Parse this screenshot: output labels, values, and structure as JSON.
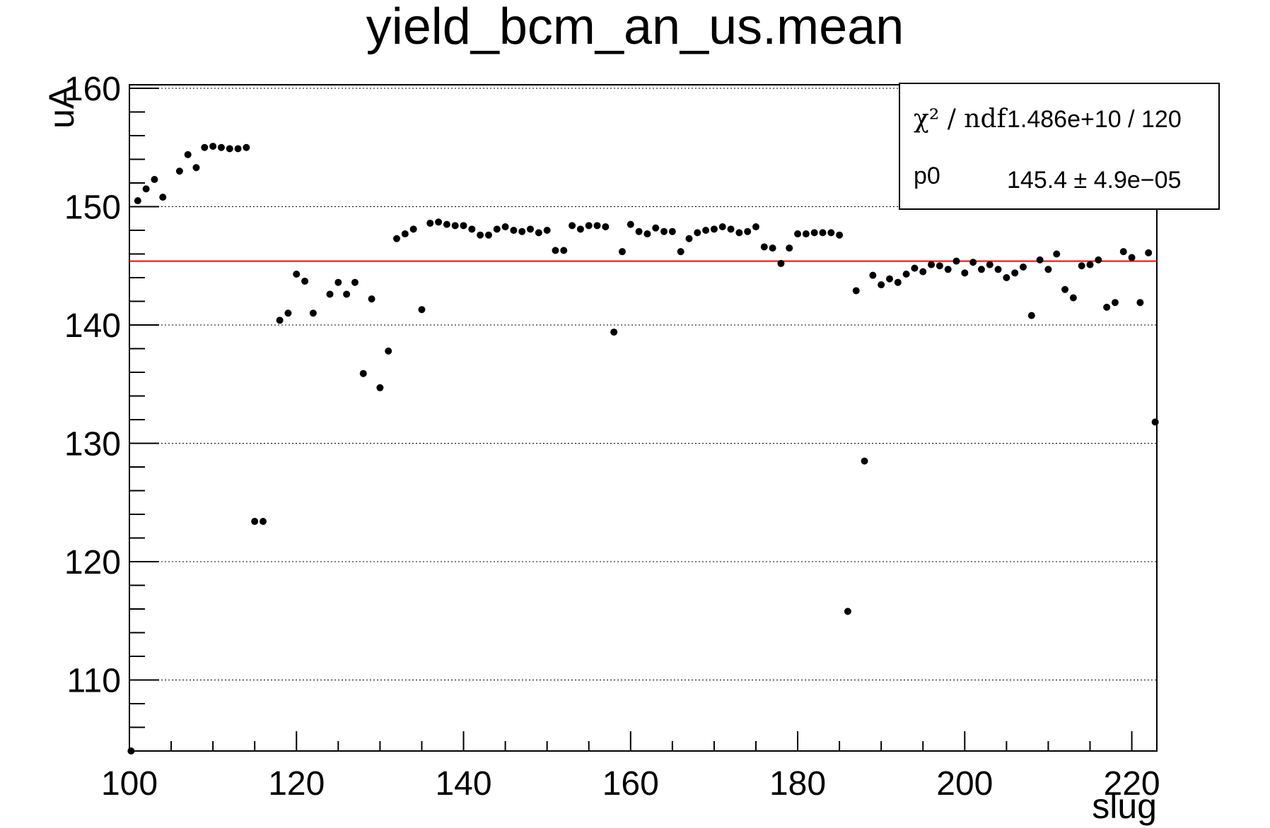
{
  "chart_data": {
    "type": "scatter",
    "title": "yield_bcm_an_us.mean",
    "xlabel": "slug",
    "ylabel": "uA",
    "xlim": [
      100,
      223
    ],
    "ylim": [
      104,
      160.3
    ],
    "x_ticks": [
      "100",
      "120",
      "140",
      "160",
      "180",
      "200",
      "220"
    ],
    "y_ticks": [
      "110",
      "120",
      "130",
      "140",
      "150",
      "160"
    ],
    "grid": "horizontal",
    "fit_line": {
      "value": 145.4,
      "color": "#ff0000"
    },
    "stats": {
      "chi2_label": "χ² / ndf",
      "chi2_value": "1.486e+10 / 120",
      "p0_label": "p0",
      "p0_value": "145.4 ± 4.9e−05"
    },
    "points": [
      [
        100.2,
        104.0
      ],
      [
        101,
        150.5
      ],
      [
        102,
        151.5
      ],
      [
        103,
        152.3
      ],
      [
        104,
        150.8
      ],
      [
        106,
        153
      ],
      [
        107,
        154.4
      ],
      [
        108,
        153.3
      ],
      [
        109,
        155.0
      ],
      [
        110,
        155.1
      ],
      [
        111,
        155.0
      ],
      [
        112,
        154.9
      ],
      [
        113,
        154.9
      ],
      [
        114,
        155.0
      ],
      [
        115,
        123.4
      ],
      [
        116,
        123.4
      ],
      [
        118,
        140.4
      ],
      [
        119,
        141.0
      ],
      [
        120,
        144.3
      ],
      [
        121,
        143.7
      ],
      [
        122,
        141.0
      ],
      [
        124,
        142.6
      ],
      [
        125,
        143.6
      ],
      [
        126,
        142.6
      ],
      [
        127,
        143.6
      ],
      [
        128,
        135.9
      ],
      [
        129,
        142.2
      ],
      [
        130,
        134.7
      ],
      [
        131,
        137.8
      ],
      [
        132,
        147.3
      ],
      [
        133,
        147.7
      ],
      [
        134,
        148.1
      ],
      [
        135,
        141.3
      ],
      [
        136,
        148.6
      ],
      [
        137,
        148.7
      ],
      [
        138,
        148.5
      ],
      [
        139,
        148.4
      ],
      [
        140,
        148.4
      ],
      [
        141,
        148.1
      ],
      [
        142,
        147.6
      ],
      [
        143,
        147.6
      ],
      [
        144,
        148.1
      ],
      [
        145,
        148.3
      ],
      [
        146,
        148.0
      ],
      [
        147,
        147.9
      ],
      [
        148,
        148.1
      ],
      [
        149,
        147.8
      ],
      [
        150,
        148.0
      ],
      [
        151,
        146.3
      ],
      [
        152,
        146.3
      ],
      [
        153,
        148.4
      ],
      [
        154,
        148.1
      ],
      [
        155,
        148.4
      ],
      [
        156,
        148.4
      ],
      [
        157,
        148.3
      ],
      [
        158,
        139.4
      ],
      [
        159,
        146.2
      ],
      [
        160,
        148.5
      ],
      [
        161,
        147.9
      ],
      [
        162,
        147.7
      ],
      [
        163,
        148.2
      ],
      [
        164,
        147.9
      ],
      [
        165,
        147.9
      ],
      [
        166,
        146.2
      ],
      [
        167,
        147.3
      ],
      [
        168,
        147.8
      ],
      [
        169,
        148.0
      ],
      [
        170,
        148.1
      ],
      [
        171,
        148.3
      ],
      [
        172,
        148.1
      ],
      [
        173,
        147.8
      ],
      [
        174,
        147.9
      ],
      [
        175,
        148.3
      ],
      [
        176,
        146.6
      ],
      [
        177,
        146.5
      ],
      [
        178,
        145.2
      ],
      [
        179,
        146.5
      ],
      [
        180,
        147.7
      ],
      [
        181,
        147.7
      ],
      [
        182,
        147.8
      ],
      [
        183,
        147.8
      ],
      [
        184,
        147.8
      ],
      [
        185,
        147.6
      ],
      [
        186,
        115.8
      ],
      [
        187,
        142.9
      ],
      [
        188,
        128.5
      ],
      [
        189,
        144.2
      ],
      [
        190,
        143.4
      ],
      [
        191,
        143.9
      ],
      [
        192,
        143.6
      ],
      [
        193,
        144.3
      ],
      [
        194,
        144.8
      ],
      [
        195,
        144.5
      ],
      [
        196,
        145.1
      ],
      [
        197,
        145.0
      ],
      [
        198,
        144.7
      ],
      [
        199,
        145.4
      ],
      [
        200,
        144.4
      ],
      [
        201,
        145.3
      ],
      [
        202,
        144.7
      ],
      [
        203,
        145.1
      ],
      [
        204,
        144.7
      ],
      [
        205,
        144.0
      ],
      [
        206,
        144.4
      ],
      [
        207,
        144.9
      ],
      [
        208,
        140.8
      ],
      [
        209,
        145.5
      ],
      [
        210,
        144.7
      ],
      [
        211,
        146.0
      ],
      [
        212,
        143.0
      ],
      [
        213,
        142.3
      ],
      [
        214,
        145.0
      ],
      [
        215,
        145.1
      ],
      [
        216,
        145.5
      ],
      [
        217,
        141.5
      ],
      [
        218,
        141.9
      ],
      [
        219,
        146.2
      ],
      [
        220,
        145.7
      ],
      [
        221,
        141.9
      ],
      [
        222,
        146.1
      ],
      [
        222.8,
        131.8
      ]
    ]
  }
}
